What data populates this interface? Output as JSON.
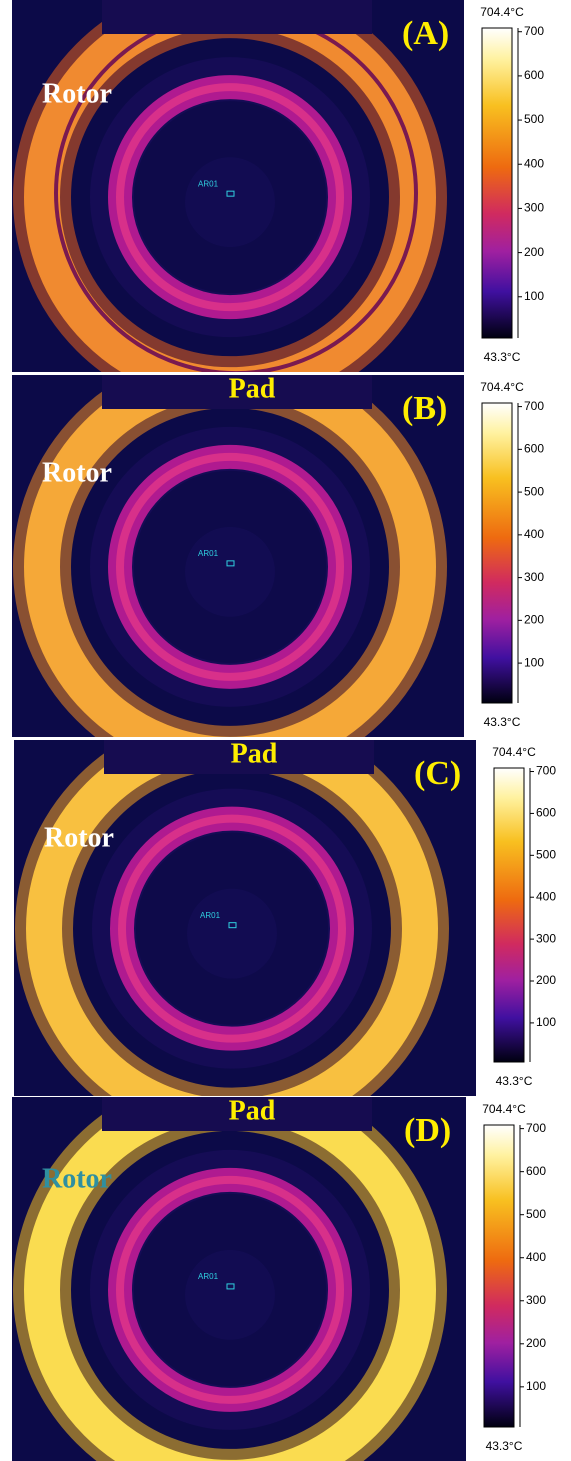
{
  "panels": [
    {
      "label": "(A)",
      "rotor": "Rotor",
      "rotor_color": "#ffffff",
      "roi": "AR01",
      "scale_max": "704.4°C",
      "scale_min": "43.3°C",
      "scale_ticks": [
        "700",
        "600",
        "500",
        "400",
        "300",
        "200",
        "100"
      ]
    },
    {
      "label": "(B)",
      "pad": "Pad",
      "rotor": "Rotor",
      "rotor_color": "#ffffff",
      "roi": "AR01",
      "scale_max": "704.4°C",
      "scale_min": "43.3°C",
      "scale_ticks": [
        "700",
        "600",
        "500",
        "400",
        "300",
        "200",
        "100"
      ]
    },
    {
      "label": "(C)",
      "pad": "Pad",
      "rotor": "Rotor",
      "rotor_color": "#ffffff",
      "roi": "AR01",
      "scale_max": "704.4°C",
      "scale_min": "43.3°C",
      "scale_ticks": [
        "700",
        "600",
        "500",
        "400",
        "300",
        "200",
        "100"
      ]
    },
    {
      "label": "(D)",
      "pad": "Pad",
      "rotor": "Rotor",
      "rotor_color": "#2f8fa0",
      "roi": "AR01",
      "scale_max": "704.4°C",
      "scale_min": "43.3°C",
      "scale_ticks": [
        "700",
        "600",
        "500",
        "400",
        "300",
        "200",
        "100"
      ]
    }
  ]
}
